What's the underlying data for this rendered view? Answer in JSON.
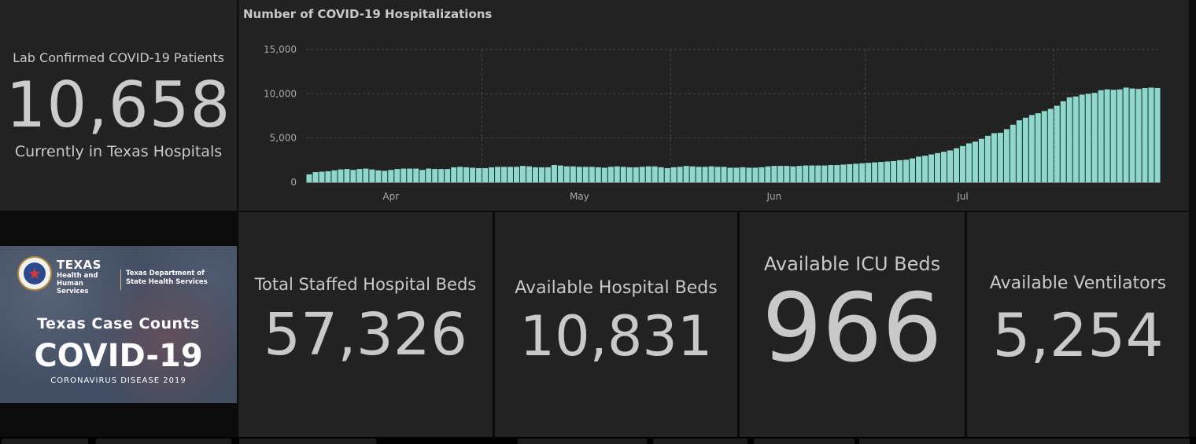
{
  "patients": {
    "label": "Lab Confirmed COVID-19 Patients",
    "count": "10,658",
    "sublabel": "Currently in Texas Hospitals"
  },
  "chart_data": {
    "type": "bar",
    "title": "Number of COVID-19 Hospitalizations",
    "y_ticks": [
      "15,000",
      "10,000",
      "5,000",
      "0"
    ],
    "ylim": [
      0,
      15000
    ],
    "x_ticks": [
      "Apr",
      "May",
      "Jun",
      "Jul"
    ],
    "x_tick_dates": [
      "2020-04-01",
      "2020-05-01",
      "2020-06-01",
      "2020-07-01"
    ],
    "start_date": "2020-03-19",
    "grid": true,
    "color": "#8fd8cc",
    "values": [
      900,
      1150,
      1200,
      1250,
      1350,
      1450,
      1500,
      1400,
      1500,
      1550,
      1450,
      1350,
      1300,
      1400,
      1500,
      1550,
      1550,
      1550,
      1400,
      1550,
      1500,
      1500,
      1500,
      1700,
      1750,
      1700,
      1650,
      1600,
      1600,
      1700,
      1750,
      1750,
      1750,
      1750,
      1850,
      1800,
      1700,
      1700,
      1700,
      1950,
      1900,
      1800,
      1800,
      1750,
      1750,
      1750,
      1700,
      1650,
      1750,
      1800,
      1750,
      1700,
      1700,
      1750,
      1800,
      1800,
      1700,
      1600,
      1700,
      1750,
      1850,
      1800,
      1750,
      1750,
      1800,
      1750,
      1750,
      1650,
      1650,
      1700,
      1650,
      1650,
      1700,
      1800,
      1850,
      1850,
      1850,
      1800,
      1850,
      1900,
      1900,
      1900,
      1900,
      1950,
      1950,
      2000,
      2050,
      2100,
      2150,
      2200,
      2250,
      2300,
      2350,
      2400,
      2500,
      2550,
      2700,
      2900,
      3000,
      3150,
      3300,
      3450,
      3600,
      3850,
      4100,
      4400,
      4600,
      4900,
      5250,
      5550,
      5600,
      6000,
      6500,
      7000,
      7300,
      7600,
      7800,
      8050,
      8300,
      8650,
      9150,
      9600,
      9700,
      9900,
      10000,
      10100,
      10400,
      10500,
      10450,
      10500,
      10700,
      10600,
      10550,
      10650,
      10700,
      10658
    ]
  },
  "banner": {
    "org_main": "TEXAS",
    "org_sub": "Health and Human Services",
    "org_dept": "Texas Department of State Health Services",
    "heading": "Texas Case Counts",
    "covid": "COVID-19",
    "disease": "CORONAVIRUS DISEASE 2019",
    "seal_icon": "texas-seal-icon"
  },
  "stats": [
    {
      "label": "Total Staffed Hospital Beds",
      "value": "57,326"
    },
    {
      "label": "Available Hospital Beds",
      "value": "10,831"
    },
    {
      "label": "Available ICU Beds",
      "value": "966"
    },
    {
      "label": "Available Ventilators",
      "value": "5,254"
    }
  ],
  "colors": {
    "panel": "#222222",
    "background": "#0b0b0b",
    "text": "#c9c9c9",
    "bar": "#8fd8cc"
  }
}
